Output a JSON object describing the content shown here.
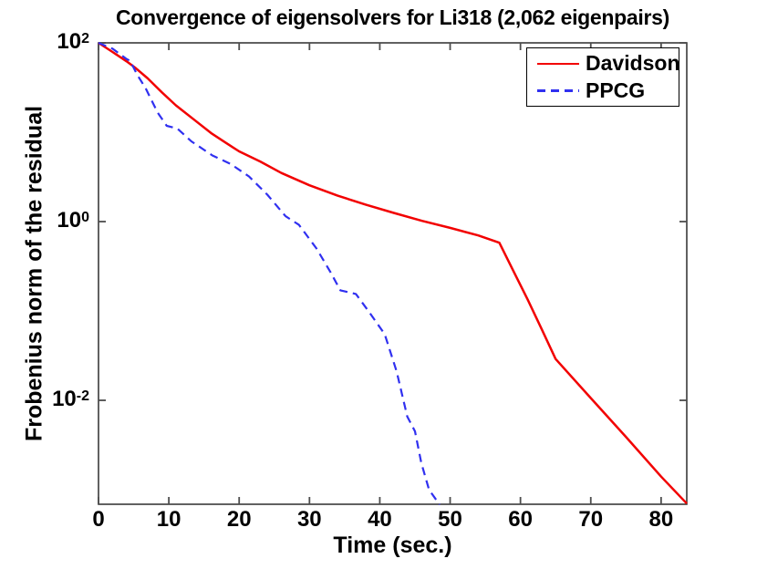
{
  "figure": {
    "background": "#ffffff",
    "text_color": "#000000",
    "axis_color": "#3a3a3a",
    "tick_color": "#4d4d4d"
  },
  "chart_data": {
    "type": "line",
    "title": "Convergence of eigensolvers for Li318 (2,062 eigenpairs)",
    "xlabel": "Time (sec.)",
    "ylabel": "Frobenius norm of the residual",
    "xlim": [
      0,
      83.65
    ],
    "yscale": "log",
    "ylim": [
      0.00069,
      100
    ],
    "ylim_exponents": [
      -3.163,
      2
    ],
    "x_ticks": [
      0,
      10,
      20,
      30,
      40,
      50,
      60,
      70,
      80
    ],
    "y_tick_exponents": [
      2,
      0,
      -2
    ],
    "grid": false,
    "legend": {
      "position": "top-right",
      "entries": [
        {
          "label": "Davidson",
          "color": "#f20000",
          "style": "solid"
        },
        {
          "label": "PPCG",
          "color": "#3030f0",
          "style": "dashed"
        }
      ]
    },
    "series": [
      {
        "name": "Davidson",
        "color": "#f20000",
        "style": "solid",
        "width": 2.5,
        "points": [
          [
            0,
            100
          ],
          [
            2,
            79
          ],
          [
            4,
            62
          ],
          [
            5.3,
            52
          ],
          [
            7,
            40
          ],
          [
            9,
            28
          ],
          [
            11,
            20
          ],
          [
            13.5,
            14
          ],
          [
            16,
            9.8
          ],
          [
            18,
            7.7
          ],
          [
            20,
            6.1
          ],
          [
            23,
            4.7
          ],
          [
            26,
            3.5
          ],
          [
            30,
            2.55
          ],
          [
            34,
            1.95
          ],
          [
            38,
            1.55
          ],
          [
            42,
            1.25
          ],
          [
            46,
            1.02
          ],
          [
            50,
            0.85
          ],
          [
            54,
            0.7
          ],
          [
            57,
            0.58
          ],
          [
            59,
            0.28
          ],
          [
            61,
            0.135
          ],
          [
            63,
            0.063
          ],
          [
            65,
            0.029
          ],
          [
            70,
            0.0106
          ],
          [
            75,
            0.0039
          ],
          [
            80,
            0.0014
          ],
          [
            83.65,
            0.0007
          ]
        ]
      },
      {
        "name": "PPCG",
        "color": "#3030f0",
        "style": "dashed",
        "width": 2.2,
        "points": [
          [
            0,
            100
          ],
          [
            2,
            86
          ],
          [
            4,
            66
          ],
          [
            4.5,
            63
          ],
          [
            5.5,
            44
          ],
          [
            6.7,
            31
          ],
          [
            8.4,
            16.6
          ],
          [
            9.7,
            11.8
          ],
          [
            11.2,
            11.0
          ],
          [
            13.2,
            7.9
          ],
          [
            16.2,
            5.5
          ],
          [
            18.8,
            4.4
          ],
          [
            21.4,
            3.2
          ],
          [
            24,
            2.0
          ],
          [
            26.6,
            1.15
          ],
          [
            28.5,
            0.92
          ],
          [
            31,
            0.5
          ],
          [
            33,
            0.27
          ],
          [
            34.4,
            0.17
          ],
          [
            36.6,
            0.155
          ],
          [
            38.3,
            0.102
          ],
          [
            40.7,
            0.055
          ],
          [
            42.4,
            0.021
          ],
          [
            43.9,
            0.0066
          ],
          [
            45,
            0.0045
          ],
          [
            45.9,
            0.002
          ],
          [
            47,
            0.001
          ],
          [
            48.5,
            0.00068
          ]
        ]
      }
    ]
  }
}
